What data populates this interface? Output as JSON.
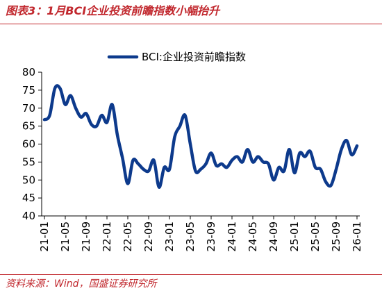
{
  "figure": {
    "title": "图表3：1月BCI企业投资前瞻指数小幅抬升",
    "source": "资料来源：Wind，国盛证券研究所"
  },
  "colors": {
    "accent": "#c1272d",
    "series": "#0d3a8c",
    "axis": "#000000"
  },
  "chart_data": {
    "type": "line",
    "title": "",
    "xlabel": "",
    "ylabel": "",
    "ylim": [
      40,
      80
    ],
    "yticks": [
      40,
      45,
      50,
      55,
      60,
      65,
      70,
      75,
      80
    ],
    "grid": false,
    "legend": "top-center",
    "x_tick_labels": [
      "21-01",
      "21-05",
      "21-09",
      "22-01",
      "22-05",
      "22-09",
      "23-01",
      "23-05",
      "23-09",
      "24-01",
      "24-05",
      "24-09",
      "25-01",
      "25-05",
      "25-09",
      "26-01"
    ],
    "series": [
      {
        "name": "BCI:企业投资前瞻指数",
        "x": [
          "21-01",
          "21-02",
          "21-03",
          "21-04",
          "21-05",
          "21-06",
          "21-07",
          "21-08",
          "21-09",
          "21-10",
          "21-11",
          "21-12",
          "22-01",
          "22-02",
          "22-03",
          "22-04",
          "22-05",
          "22-06",
          "22-07",
          "22-08",
          "22-09",
          "22-10",
          "22-11",
          "22-12",
          "23-01",
          "23-02",
          "23-03",
          "23-04",
          "23-05",
          "23-06",
          "23-07",
          "23-08",
          "23-09",
          "23-10",
          "23-11",
          "23-12",
          "24-01",
          "24-02",
          "24-03",
          "24-04",
          "24-05",
          "24-06",
          "24-07",
          "24-08",
          "24-09",
          "24-10",
          "24-11",
          "24-12",
          "25-01",
          "25-02",
          "25-03",
          "25-04",
          "25-05",
          "25-06",
          "25-07",
          "25-08",
          "25-09",
          "25-10",
          "25-11",
          "25-12",
          "26-01"
        ],
        "values": [
          66.8,
          68.0,
          75.5,
          75.5,
          71.0,
          73.5,
          70.0,
          67.5,
          68.5,
          65.5,
          65.0,
          68.0,
          66.0,
          71.0,
          62.5,
          56.0,
          49.0,
          55.5,
          54.5,
          53.0,
          52.5,
          55.5,
          48.0,
          53.5,
          53.0,
          62.0,
          65.0,
          68.0,
          60.0,
          52.5,
          53.0,
          54.5,
          57.5,
          54.0,
          54.5,
          53.5,
          55.5,
          56.5,
          55.0,
          58.5,
          55.0,
          56.5,
          55.0,
          54.5,
          50.0,
          53.5,
          52.5,
          58.5,
          52.0,
          57.5,
          56.5,
          58.0,
          53.5,
          53.0,
          49.5,
          48.5,
          53.0,
          58.5,
          61.0,
          57.0,
          59.5
        ]
      }
    ]
  }
}
